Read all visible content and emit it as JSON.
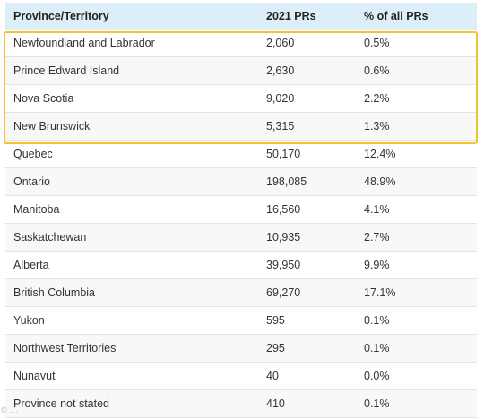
{
  "table": {
    "headers": [
      "Province/Territory",
      "2021 PRs",
      "% of all PRs"
    ],
    "rows": [
      [
        "Newfoundland and Labrador",
        "2,060",
        "0.5%"
      ],
      [
        "Prince Edward Island",
        "2,630",
        "0.6%"
      ],
      [
        "Nova Scotia",
        "9,020",
        "2.2%"
      ],
      [
        "New Brunswick",
        "5,315",
        "1.3%"
      ],
      [
        "Quebec",
        "50,170",
        "12.4%"
      ],
      [
        "Ontario",
        "198,085",
        "48.9%"
      ],
      [
        "Manitoba",
        "16,560",
        "4.1%"
      ],
      [
        "Saskatchewan",
        "10,935",
        "2.7%"
      ],
      [
        "Alberta",
        "39,950",
        "9.9%"
      ],
      [
        "British Columbia",
        "69,270",
        "17.1%"
      ],
      [
        "Yukon",
        "595",
        "0.1%"
      ],
      [
        "Northwest Territories",
        "295",
        "0.1%"
      ],
      [
        "Nunavut",
        "40",
        "0.0%"
      ],
      [
        "Province not stated",
        "410",
        "0.1%"
      ]
    ]
  },
  "highlight": {
    "color": "#f2c230",
    "rows_highlighted": [
      "Newfoundland and Labrador",
      "Prince Edward Island",
      "Nova Scotia",
      "New Brunswick"
    ]
  },
  "colors": {
    "header_bg": "#dceef7",
    "row_border": "#e3e3e3"
  }
}
